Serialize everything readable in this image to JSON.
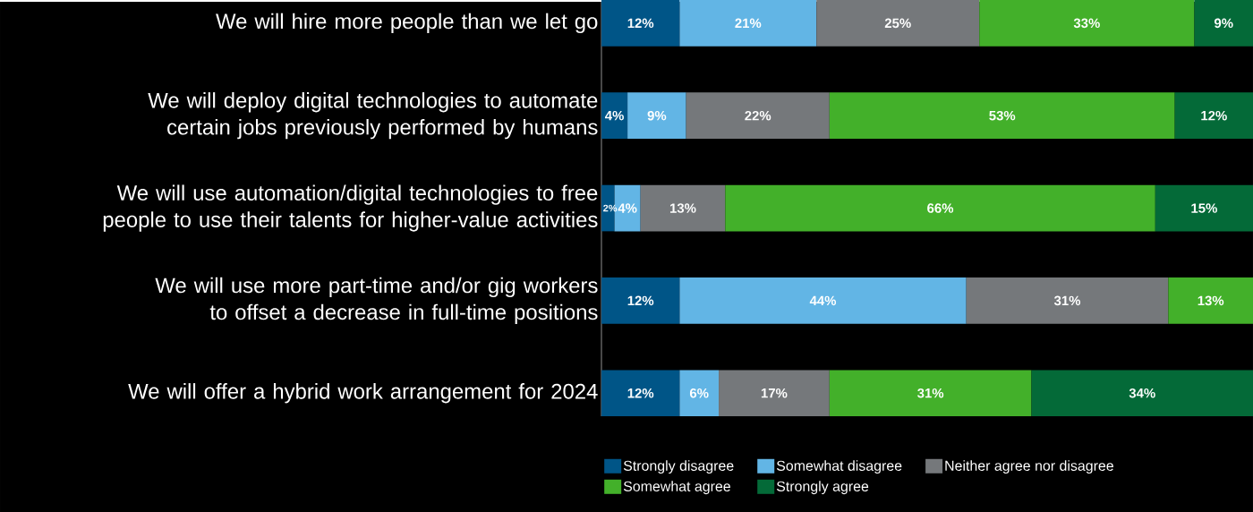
{
  "chart_data": {
    "type": "bar",
    "orientation": "horizontal",
    "stacked": true,
    "categories": [
      "We will hire more people than we let go",
      "We will deploy digital technologies to automate certain jobs previously performed by humans",
      "We will use automation/digital technologies to free people to use their talents for higher-value activities",
      "We will use more part-time and/or gig workers to offset a decrease in full-time positions",
      "We will offer a hybrid work arrangement for 2024"
    ],
    "series": [
      {
        "name": "Strongly disagree",
        "color": "#005587",
        "values": [
          12,
          4,
          2,
          12,
          12
        ],
        "value_labels": [
          "12%",
          "4%",
          "2%",
          "12%",
          "12%"
        ]
      },
      {
        "name": "Somewhat disagree",
        "color": "#62b5e5",
        "values": [
          21,
          9,
          4,
          44,
          6
        ],
        "value_labels": [
          "21%",
          "9%",
          "4%",
          "44%",
          "6%"
        ]
      },
      {
        "name": "Neither agree nor disagree",
        "color": "#75787b",
        "values": [
          25,
          22,
          13,
          31,
          17
        ],
        "value_labels": [
          "25%",
          "22%",
          "13%",
          "31%",
          "17%"
        ]
      },
      {
        "name": "Somewhat agree",
        "color": "#43b02a",
        "values": [
          33,
          53,
          66,
          13,
          31
        ],
        "value_labels": [
          "33%",
          "53%",
          "66%",
          "13%",
          "31%"
        ]
      },
      {
        "name": "Strongly agree",
        "color": "#046a38",
        "values": [
          9,
          12,
          15,
          null,
          34
        ],
        "value_labels": [
          "9%",
          "12%",
          "15%",
          null,
          "34%"
        ]
      }
    ],
    "xlim": [
      0,
      100
    ],
    "tick_labels": "y",
    "legend": "bottom"
  }
}
